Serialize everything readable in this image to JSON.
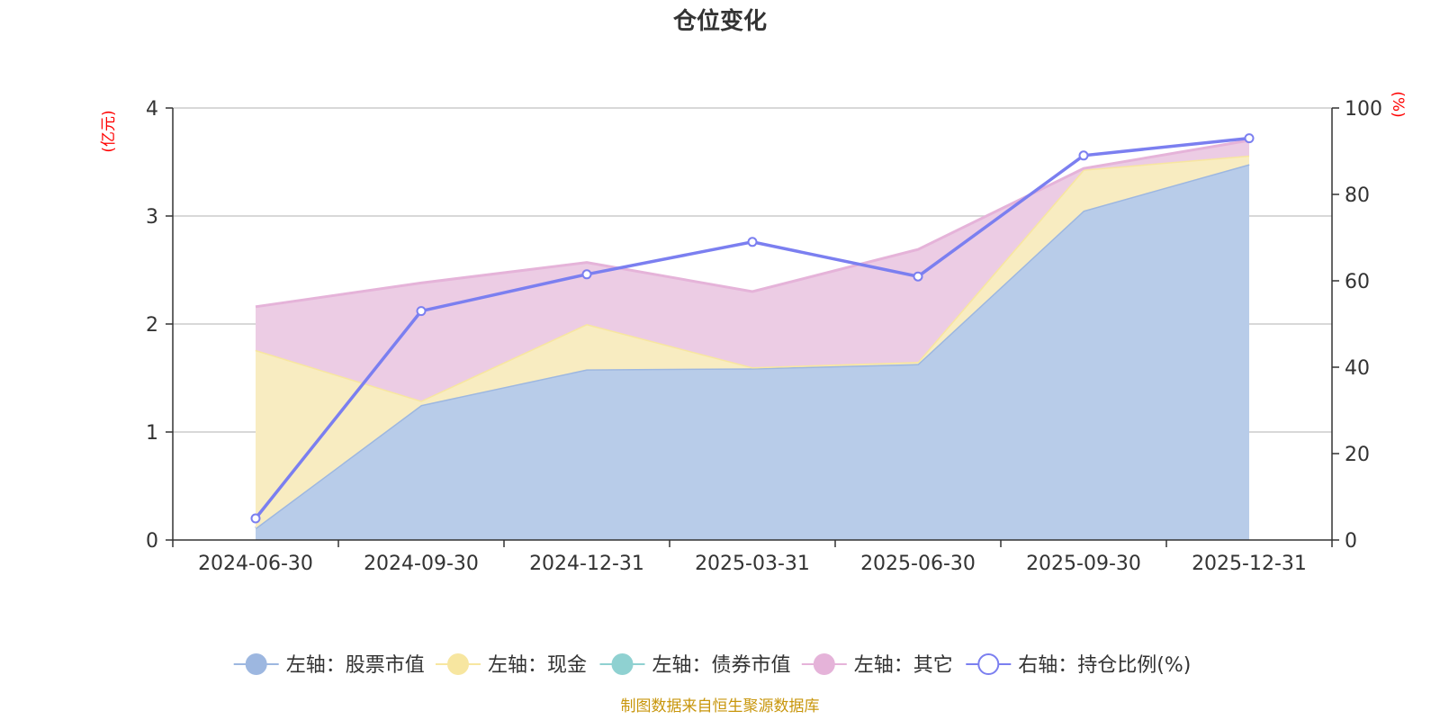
{
  "chart_data": {
    "type": "area",
    "title": "仓位变化",
    "categories": [
      "2024-06-30",
      "2024-09-30",
      "2024-12-31",
      "2025-03-31",
      "2025-06-30",
      "2025-09-30",
      "2025-12-31"
    ],
    "left_axis": {
      "unit": "(亿元)",
      "ylim": [
        0,
        4
      ],
      "ticks": [
        0,
        1,
        2,
        3,
        4
      ]
    },
    "right_axis": {
      "unit": "(%)",
      "ylim": [
        0,
        100
      ],
      "ticks": [
        0,
        20,
        40,
        60,
        80,
        100
      ]
    },
    "series": [
      {
        "name": "左轴：股票市值",
        "axis": "left",
        "stack": true,
        "color": "#9db7e0",
        "fill": "#b8cce9",
        "values": [
          0.11,
          1.25,
          1.58,
          1.59,
          1.63,
          3.05,
          3.48
        ]
      },
      {
        "name": "左轴：现金",
        "axis": "left",
        "stack": true,
        "color": "#f7e6a0",
        "fill": "#f8ecc1",
        "values": [
          1.65,
          0.04,
          0.42,
          0.01,
          0.02,
          0.38,
          0.08
        ]
      },
      {
        "name": "左轴：债券市值",
        "axis": "left",
        "stack": true,
        "color": "#8fd1d1",
        "fill": "#bfe6e6",
        "values": [
          0,
          0,
          0,
          0,
          0,
          0,
          0
        ]
      },
      {
        "name": "左轴：其它",
        "axis": "left",
        "stack": true,
        "color": "#e5b3d9",
        "fill": "#ecccE4",
        "values": [
          0.4,
          1.09,
          0.57,
          0.7,
          1.04,
          0.01,
          0.14
        ]
      },
      {
        "name": "右轴：持仓比例(%)",
        "axis": "right",
        "type": "line",
        "color": "#7b7ff0",
        "values": [
          5,
          53,
          61.5,
          69,
          61,
          89,
          93
        ]
      }
    ],
    "legend_position": "bottom",
    "grid": true
  },
  "source_note": "制图数据来自恒生聚源数据库"
}
